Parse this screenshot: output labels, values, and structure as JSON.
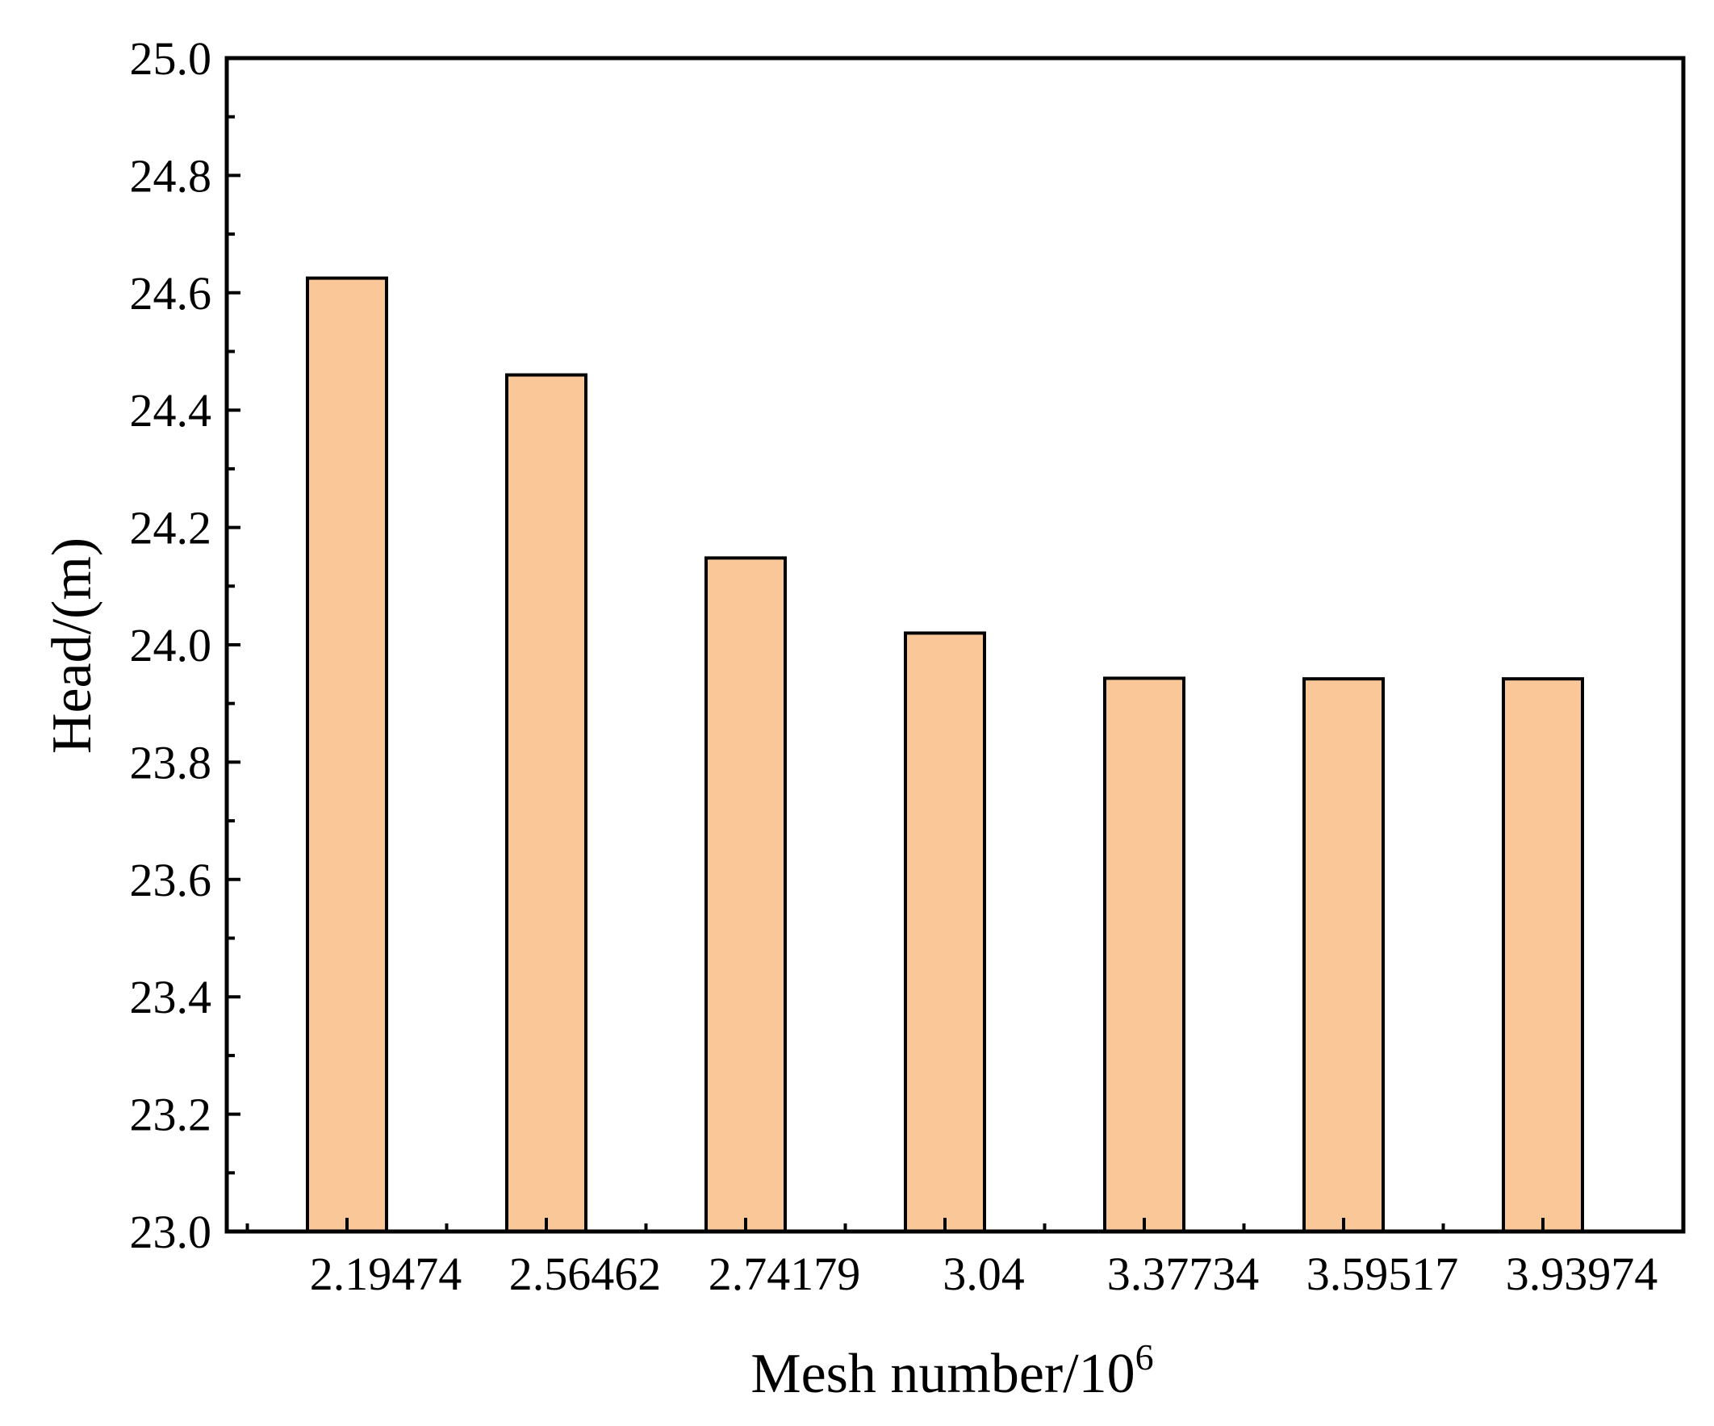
{
  "chart_data": {
    "type": "bar",
    "xlabel": "Mesh number/10",
    "xlabel_superscript": "6",
    "ylabel": "Head/(m)",
    "categories": [
      "2.19474",
      "2.56462",
      "2.74179",
      "3.04",
      "3.37734",
      "3.59517",
      "3.93974"
    ],
    "values": [
      24.625,
      24.46,
      24.148,
      24.02,
      23.943,
      23.942,
      23.942
    ],
    "ylim": [
      23.0,
      25.0
    ],
    "yticks": [
      "23.0",
      "23.2",
      "23.4",
      "23.6",
      "23.8",
      "24.0",
      "24.2",
      "24.4",
      "24.6",
      "24.8",
      "25.0"
    ],
    "grid": false,
    "legend": "none",
    "bar_color": "#FAC898",
    "bar_edge_color": "#000000"
  }
}
